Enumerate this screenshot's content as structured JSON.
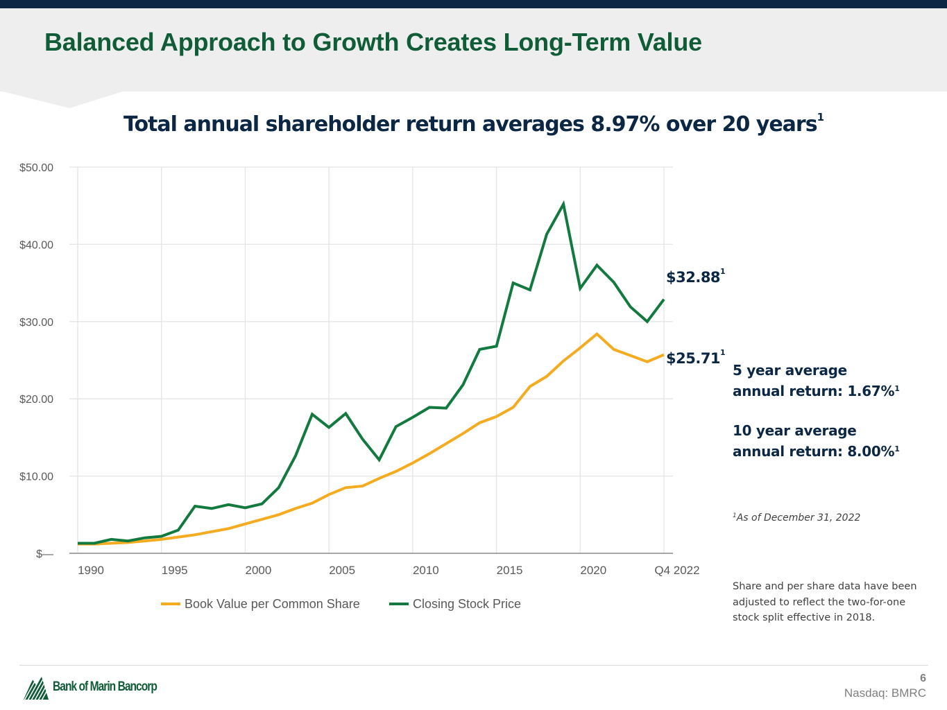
{
  "header": {
    "title": "Balanced Approach to Growth Creates Long-Term Value",
    "subtitle": "Total annual shareholder return averages 8.97% over 20 years",
    "subtitle_sup": "1"
  },
  "colors": {
    "brand_green": "#0f5c36",
    "navy": "#0b2744",
    "book_value_line": "#f5ab1f",
    "stock_price_line": "#137a3f"
  },
  "end_labels": {
    "stock_price": "$32.88",
    "stock_price_sup": "1",
    "book_value": "$25.71",
    "book_value_sup": "1"
  },
  "stats": {
    "five_year_line1": "5 year average",
    "five_year_line2": "annual return: 1.67%",
    "five_year_sup": "1",
    "ten_year_line1": "10 year average",
    "ten_year_line2": "annual return: 8.00%",
    "ten_year_sup": "1"
  },
  "footnote": {
    "sup": "1",
    "text": "As of December 31, 2022"
  },
  "split_note": "Share and per share data have been adjusted to reflect the two-for-one stock split effective in 2018.",
  "footer": {
    "logo_text": "Bank of Marin Bancorp",
    "page_number": "6",
    "ticker": "Nasdaq: BMRC"
  },
  "chart_data": {
    "type": "line",
    "title": "",
    "xlabel": "",
    "ylabel": "",
    "ylim": [
      0,
      50
    ],
    "yticks": [
      0,
      10,
      20,
      30,
      40,
      50
    ],
    "ytick_labels": [
      "$—",
      "$10.00",
      "$20.00",
      "$30.00",
      "$40.00",
      "$50.00"
    ],
    "xtick_labels": [
      "1990",
      "1995",
      "2000",
      "2005",
      "2010",
      "2015",
      "2020",
      "Q4 2022"
    ],
    "xtick_indices": [
      0,
      5,
      10,
      15,
      20,
      25,
      30,
      35
    ],
    "point_count": 36,
    "grid": true,
    "legend_position": "bottom",
    "series": [
      {
        "name": "Book Value per Common Share",
        "color": "#f5ab1f",
        "values": [
          1.2,
          1.2,
          1.3,
          1.4,
          1.6,
          1.8,
          2.1,
          2.4,
          2.8,
          3.2,
          3.8,
          4.4,
          5.0,
          5.8,
          6.5,
          7.6,
          8.5,
          8.7,
          9.7,
          10.6,
          11.7,
          12.9,
          14.2,
          15.5,
          16.9,
          17.7,
          18.9,
          21.6,
          22.9,
          24.9,
          26.6,
          28.4,
          26.4,
          25.6,
          24.8,
          25.71
        ]
      },
      {
        "name": "Closing Stock Price",
        "color": "#137a3f",
        "values": [
          1.3,
          1.3,
          1.8,
          1.6,
          2.0,
          2.2,
          3.0,
          6.1,
          5.8,
          6.3,
          5.9,
          6.4,
          8.5,
          12.6,
          18.0,
          16.3,
          18.1,
          14.8,
          12.1,
          16.4,
          17.6,
          18.9,
          18.8,
          21.8,
          26.4,
          26.8,
          35.0,
          34.1,
          41.3,
          45.2,
          34.3,
          37.3,
          35.1,
          31.9,
          30.0,
          32.88
        ]
      }
    ]
  }
}
